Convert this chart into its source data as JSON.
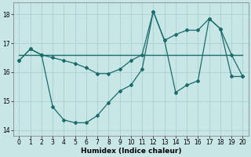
{
  "xlabel": "Humidex (Indice chaleur)",
  "xlim": [
    -0.5,
    20.5
  ],
  "ylim": [
    13.8,
    18.4
  ],
  "yticks": [
    14,
    15,
    16,
    17,
    18
  ],
  "xticks": [
    0,
    1,
    2,
    3,
    4,
    5,
    6,
    7,
    8,
    9,
    10,
    11,
    12,
    13,
    14,
    15,
    16,
    17,
    18,
    19,
    20
  ],
  "bg_color": "#c8e6e6",
  "line_color": "#1a6b6b",
  "grid_color": "#a8d0d0",
  "flat_line_x": [
    0,
    20
  ],
  "flat_line_y": [
    16.6,
    16.6
  ],
  "line_upper_x": [
    0,
    1,
    2,
    3,
    4,
    5,
    6,
    7,
    8,
    9,
    10,
    11,
    12,
    13,
    14,
    15,
    16,
    17,
    18,
    19,
    20
  ],
  "line_upper_y": [
    16.4,
    16.8,
    16.6,
    16.5,
    16.4,
    16.3,
    16.15,
    15.95,
    15.95,
    16.1,
    16.4,
    16.6,
    18.1,
    17.1,
    17.3,
    17.45,
    17.45,
    17.85,
    17.5,
    16.6,
    15.85
  ],
  "line_lower_x": [
    0,
    1,
    2,
    3,
    4,
    5,
    6,
    7,
    8,
    9,
    10,
    11,
    12,
    13,
    14,
    15,
    16,
    17,
    18,
    19,
    20
  ],
  "line_lower_y": [
    16.4,
    16.8,
    16.6,
    14.8,
    14.35,
    14.25,
    14.25,
    14.5,
    14.95,
    15.35,
    15.55,
    16.1,
    18.1,
    17.1,
    15.3,
    15.55,
    15.7,
    17.85,
    17.5,
    15.85,
    15.85
  ]
}
